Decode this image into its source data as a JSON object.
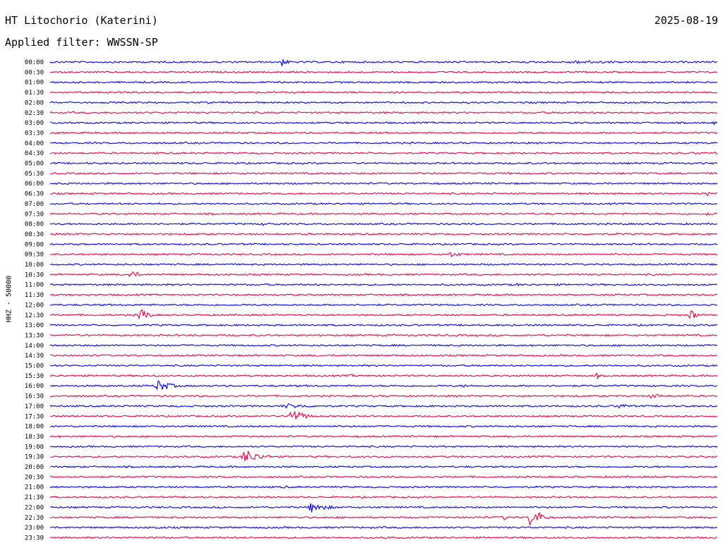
{
  "header": {
    "title": "HT Litochorio (Katerini)",
    "date": "2025-08-19",
    "filter": "Applied filter: WWSSN-SP"
  },
  "channel_label": "HHZ - 50000",
  "colors": {
    "blue": "#0000ee",
    "red": "#ee0044",
    "background": "#ffffff",
    "text": "#000000"
  },
  "chart_data": {
    "type": "line",
    "subtype": "helicorder",
    "title": "HT Litochorio (Katerini)",
    "ylabel": "HHZ - 50000",
    "line_colors_alternating": [
      "blue",
      "red"
    ],
    "rows": [
      {
        "time": "00:00",
        "events": [
          {
            "pos": 0.345,
            "amp": 8,
            "dur": 0.02
          },
          {
            "pos": 0.78,
            "amp": 2.5,
            "dur": 0.25
          }
        ]
      },
      {
        "time": "00:30",
        "events": []
      },
      {
        "time": "01:00",
        "events": [
          {
            "pos": 0.52,
            "amp": 2,
            "dur": 0.02
          }
        ]
      },
      {
        "time": "01:30",
        "events": []
      },
      {
        "time": "02:00",
        "events": []
      },
      {
        "time": "02:30",
        "events": []
      },
      {
        "time": "03:00",
        "events": [
          {
            "pos": 0.995,
            "amp": 3,
            "dur": 0.005
          }
        ]
      },
      {
        "time": "03:30",
        "events": []
      },
      {
        "time": "04:00",
        "events": [
          {
            "pos": 0.42,
            "amp": 2,
            "dur": 0.01
          }
        ]
      },
      {
        "time": "04:30",
        "events": [
          {
            "pos": 0.97,
            "amp": 3,
            "dur": 0.02
          }
        ]
      },
      {
        "time": "05:00",
        "events": []
      },
      {
        "time": "05:30",
        "events": []
      },
      {
        "time": "06:00",
        "events": []
      },
      {
        "time": "06:30",
        "events": [
          {
            "pos": 0.985,
            "amp": 3,
            "dur": 0.03
          }
        ]
      },
      {
        "time": "07:00",
        "events": []
      },
      {
        "time": "07:30",
        "events": [
          {
            "pos": 0.985,
            "amp": 3,
            "dur": 0.03
          }
        ]
      },
      {
        "time": "08:00",
        "events": [
          {
            "pos": 0.32,
            "amp": 3,
            "dur": 0.03
          }
        ]
      },
      {
        "time": "08:30",
        "events": []
      },
      {
        "time": "09:00",
        "events": []
      },
      {
        "time": "09:30",
        "events": [
          {
            "pos": 0.6,
            "amp": 4,
            "dur": 0.04
          }
        ]
      },
      {
        "time": "10:00",
        "events": []
      },
      {
        "time": "10:30",
        "events": [
          {
            "pos": 0.12,
            "amp": 6,
            "dur": 0.03
          }
        ]
      },
      {
        "time": "11:00",
        "events": [
          {
            "pos": 0.7,
            "amp": 2,
            "dur": 0.04
          }
        ]
      },
      {
        "time": "11:30",
        "events": []
      },
      {
        "time": "12:00",
        "events": []
      },
      {
        "time": "12:30",
        "events": [
          {
            "pos": 0.135,
            "amp": 14,
            "dur": 0.02
          },
          {
            "pos": 0.96,
            "amp": 8,
            "dur": 0.02
          }
        ]
      },
      {
        "time": "13:00",
        "events": []
      },
      {
        "time": "13:30",
        "events": []
      },
      {
        "time": "14:00",
        "events": []
      },
      {
        "time": "14:30",
        "events": []
      },
      {
        "time": "15:00",
        "events": []
      },
      {
        "time": "15:30",
        "events": [
          {
            "pos": 0.45,
            "amp": 3,
            "dur": 0.02
          },
          {
            "pos": 0.82,
            "amp": 5,
            "dur": 0.005
          }
        ]
      },
      {
        "time": "16:00",
        "events": [
          {
            "pos": 0.16,
            "amp": 10,
            "dur": 0.04
          },
          {
            "pos": 0.62,
            "amp": 3,
            "dur": 0.02
          }
        ]
      },
      {
        "time": "16:30",
        "events": [
          {
            "pos": 0.9,
            "amp": 4,
            "dur": 0.05
          }
        ]
      },
      {
        "time": "17:00",
        "events": [
          {
            "pos": 0.35,
            "amp": 4,
            "dur": 0.1
          },
          {
            "pos": 0.85,
            "amp": 4,
            "dur": 0.05
          },
          {
            "pos": 0.95,
            "amp": 3,
            "dur": 0.02
          }
        ]
      },
      {
        "time": "17:30",
        "events": [
          {
            "pos": 0.36,
            "amp": 12,
            "dur": 0.04
          }
        ]
      },
      {
        "time": "18:00",
        "events": []
      },
      {
        "time": "18:30",
        "events": []
      },
      {
        "time": "19:00",
        "events": []
      },
      {
        "time": "19:30",
        "events": [
          {
            "pos": 0.29,
            "amp": 11,
            "dur": 0.05
          }
        ]
      },
      {
        "time": "20:00",
        "events": []
      },
      {
        "time": "20:30",
        "events": []
      },
      {
        "time": "21:00",
        "events": [
          {
            "pos": 0.35,
            "amp": 3,
            "dur": 0.02
          }
        ]
      },
      {
        "time": "21:30",
        "events": []
      },
      {
        "time": "22:00",
        "events": [
          {
            "pos": 0.39,
            "amp": 8,
            "dur": 0.05
          }
        ]
      },
      {
        "time": "22:30",
        "events": [
          {
            "pos": 0.72,
            "amp": 18,
            "dur": 0.03
          },
          {
            "pos": 0.68,
            "amp": 4,
            "dur": 0.02
          }
        ]
      },
      {
        "time": "23:00",
        "events": [
          {
            "pos": 0.16,
            "amp": 3,
            "dur": 0.02
          }
        ]
      },
      {
        "time": "23:30",
        "events": [
          {
            "pos": 0.5,
            "amp": 3,
            "dur": 0.02
          }
        ]
      }
    ]
  }
}
